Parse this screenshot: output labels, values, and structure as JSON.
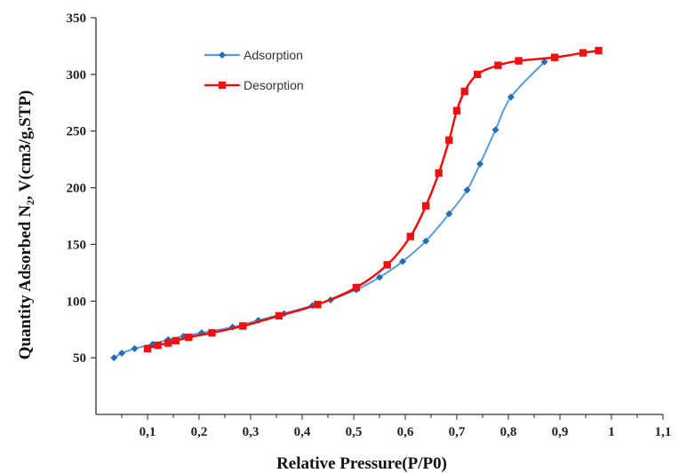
{
  "chart_data": {
    "type": "line",
    "title": "",
    "xlabel": "Relative Pressure(P/P0)",
    "ylabel": "Quantity Adsorbed  N₂, V(cm3/g,STP)",
    "xlim": [
      0,
      1.1
    ],
    "ylim": [
      0,
      350
    ],
    "x_ticks": [
      "0,1",
      "0,2",
      "0,3",
      "0,4",
      "0,5",
      "0,6",
      "0,7",
      "0,8",
      "0,9",
      "1",
      "1,1"
    ],
    "x_tick_values": [
      0.1,
      0.2,
      0.3,
      0.4,
      0.5,
      0.6,
      0.7,
      0.8,
      0.9,
      1.0,
      1.1
    ],
    "y_ticks": [
      "50",
      "100",
      "150",
      "200",
      "250",
      "300",
      "350"
    ],
    "y_tick_values": [
      50,
      100,
      150,
      200,
      250,
      300,
      350
    ],
    "grid": false,
    "legend_position": "top-left",
    "series": [
      {
        "name": "Adsorption",
        "color": "#5b9bd5",
        "marker_color": "#1f6fb8",
        "marker": "diamond",
        "x": [
          0.035,
          0.05,
          0.075,
          0.11,
          0.14,
          0.17,
          0.205,
          0.265,
          0.315,
          0.365,
          0.42,
          0.455,
          0.505,
          0.55,
          0.595,
          0.64,
          0.685,
          0.72,
          0.745,
          0.775,
          0.805,
          0.87
        ],
        "y": [
          50,
          54,
          58,
          62,
          66,
          69,
          72,
          77,
          83,
          89,
          96,
          101,
          110,
          121,
          135,
          153,
          177,
          198,
          221,
          251,
          280,
          311
        ]
      },
      {
        "name": "Desorption",
        "color": "#ff0000",
        "marker_color": "#ee1111",
        "marker": "square",
        "x": [
          0.1,
          0.12,
          0.14,
          0.155,
          0.18,
          0.225,
          0.285,
          0.355,
          0.43,
          0.505,
          0.565,
          0.61,
          0.64,
          0.665,
          0.685,
          0.7,
          0.715,
          0.74,
          0.78,
          0.82,
          0.89,
          0.945,
          0.975
        ],
        "y": [
          58,
          61,
          63,
          65,
          68,
          72,
          78,
          87,
          97,
          112,
          132,
          157,
          184,
          213,
          242,
          268,
          285,
          300,
          308,
          312,
          315,
          319,
          321
        ]
      }
    ]
  }
}
